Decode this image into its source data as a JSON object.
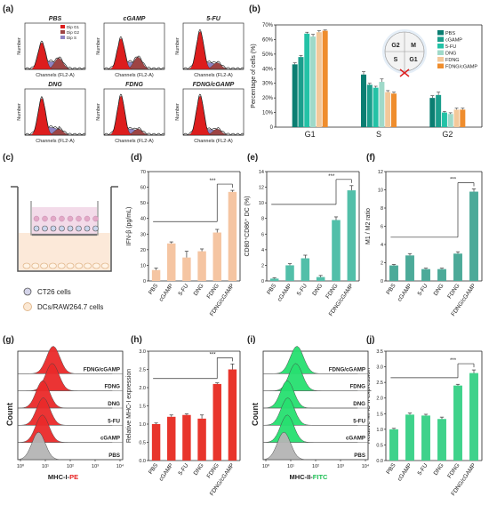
{
  "panel_labels": [
    "(a)",
    "(b)",
    "(c)",
    "(d)",
    "(e)",
    "(f)",
    "(g)",
    "(h)",
    "(i)",
    "(j)"
  ],
  "colors": {
    "cell_g1": "#dd1d1d",
    "cell_g2": "#9e4444",
    "cell_s": "#8f84c4",
    "b_series": [
      "#0b7e72",
      "#1b9e8c",
      "#23c2a6",
      "#9fd9c9",
      "#f3c89a",
      "#ef8d2d"
    ],
    "d_bar": "#f5c5a2",
    "e_bar": "#52bfa9",
    "f_bar": "#4caa99",
    "h_bar": "#e8352c",
    "j_bar": "#3fd28b",
    "g_peak": "#ea2a2a",
    "i_peak": "#27e070",
    "pbs_peak": "#b5b5b5",
    "g_axis_label_accent": "#e62020",
    "i_axis_label_accent": "#1fbf55"
  },
  "panel_a": {
    "legend": [
      "Dip G1",
      "Dip G2",
      "Dip S"
    ],
    "xlabel": "Channels (FL2-A)",
    "ylabel": "Number",
    "plots": [
      {
        "title": "PBS",
        "g1": 0.45,
        "s": 0.3,
        "g2": 0.22
      },
      {
        "title": "cGAMP",
        "g1": 0.52,
        "s": 0.28,
        "g2": 0.24
      },
      {
        "title": "5-FU",
        "g1": 0.64,
        "s": 0.26,
        "g2": 0.13
      },
      {
        "title": "DNG",
        "g1": 0.62,
        "s": 0.3,
        "g2": 0.12
      },
      {
        "title": "FDNG",
        "g1": 0.66,
        "s": 0.24,
        "g2": 0.12
      },
      {
        "title": "FDNG/cGAMP",
        "g1": 0.66,
        "s": 0.22,
        "g2": 0.12
      }
    ]
  },
  "panel_c": {
    "legend": [
      "CT26 cells",
      "DCs/RAW264.7 cells"
    ]
  },
  "panel_g": {
    "labels": [
      "FDNG/cGAMP",
      "FDNG",
      "DNG",
      "5-FU",
      "cGAMP",
      "PBS"
    ],
    "shift": [
      0.62,
      0.58,
      0.18,
      0.2,
      0.16,
      0.0
    ],
    "xlabel_main": "MHC-I-",
    "xlabel_accent": "PE",
    "ylabel": "Count",
    "ticks": [
      "10⁰",
      "10¹",
      "10²",
      "10³",
      "10⁴"
    ]
  },
  "panel_i": {
    "labels": [
      "FDNG/cGAMP",
      "FDNG",
      "DNG",
      "5-FU",
      "cGAMP",
      "PBS"
    ],
    "shift": [
      0.55,
      0.5,
      0.14,
      0.16,
      0.14,
      0.0
    ],
    "xlabel_main": "MHC-II-",
    "xlabel_accent": "FITC",
    "ylabel": "Count",
    "ticks": [
      "10⁰",
      "10¹",
      "10²",
      "10³",
      "10⁴"
    ]
  },
  "chart_data": [
    {
      "id": "b",
      "type": "bar",
      "ylabel": "Percentage of cells (%)",
      "categories": [
        "G1",
        "S",
        "G2"
      ],
      "ylim": [
        0,
        70
      ],
      "yticks": [
        "0",
        "10%",
        "20%",
        "30%",
        "40%",
        "50%",
        "60%",
        "70%"
      ],
      "series": [
        {
          "name": "PBS",
          "values": [
            43,
            36,
            20
          ],
          "err": [
            1,
            2,
            1.5
          ]
        },
        {
          "name": "cGAMP",
          "values": [
            48,
            29,
            22
          ],
          "err": [
            1,
            1,
            2
          ]
        },
        {
          "name": "5-FU",
          "values": [
            64,
            27,
            10
          ],
          "err": [
            1,
            1,
            0.8
          ]
        },
        {
          "name": "DNG",
          "values": [
            62,
            31,
            9
          ],
          "err": [
            1.5,
            2,
            0.8
          ]
        },
        {
          "name": "FDNG",
          "values": [
            65,
            24,
            12
          ],
          "err": [
            1,
            1,
            1
          ]
        },
        {
          "name": "FDNG/cGAMP",
          "values": [
            66,
            23,
            12
          ],
          "err": [
            0.5,
            1,
            1
          ]
        }
      ],
      "inset": [
        "G2",
        "M",
        "S",
        "G1"
      ]
    },
    {
      "id": "d",
      "type": "bar",
      "ylabel": "IFN-β (pg/mL)",
      "categories": [
        "PBS",
        "cGAMP",
        "5-FU",
        "DNG",
        "FDNG",
        "FDNG/cGAMP"
      ],
      "values": [
        7,
        24,
        15,
        19,
        31,
        57
      ],
      "err": [
        1.2,
        1,
        4,
        1.5,
        2,
        1
      ],
      "ylim": [
        0,
        70
      ],
      "yticks": [
        "0",
        "10",
        "20",
        "30",
        "40",
        "50",
        "60",
        "70"
      ],
      "sig": "***"
    },
    {
      "id": "e",
      "type": "bar",
      "ylabel": "CD80⁺CD86⁺ DC (%)",
      "categories": [
        "PBS",
        "cGAMP",
        "5-FU",
        "DNG",
        "FDNG",
        "FDNG/cGAMP"
      ],
      "values": [
        0.3,
        2.0,
        2.9,
        0.5,
        7.8,
        11.6
      ],
      "err": [
        0.1,
        0.2,
        0.4,
        0.2,
        0.4,
        0.6
      ],
      "ylim": [
        0,
        14
      ],
      "yticks": [
        "0",
        "2",
        "4",
        "6",
        "8",
        "10",
        "12",
        "14"
      ],
      "sig": "***"
    },
    {
      "id": "f",
      "type": "bar",
      "ylabel": "M1 / M2 ratio",
      "categories": [
        "PBS",
        "cGAMP",
        "5-FU",
        "DNG",
        "FDNG",
        "FDNG/cGAMP"
      ],
      "values": [
        1.7,
        2.8,
        1.3,
        1.3,
        3.0,
        9.8
      ],
      "err": [
        0.1,
        0.2,
        0.1,
        0.1,
        0.2,
        0.3
      ],
      "ylim": [
        0,
        12
      ],
      "yticks": [
        "0",
        "2",
        "4",
        "6",
        "8",
        "10",
        "12"
      ],
      "sig": "***"
    },
    {
      "id": "h",
      "type": "bar",
      "ylabel": "Relative MHC-I expression",
      "categories": [
        "PBS",
        "cGAMP",
        "5-FU",
        "DNG",
        "FDNG",
        "FDNG/cGAMP"
      ],
      "values": [
        1.0,
        1.2,
        1.25,
        1.15,
        2.1,
        2.5
      ],
      "err": [
        0.03,
        0.05,
        0.03,
        0.1,
        0.03,
        0.15
      ],
      "ylim": [
        0,
        3.0
      ],
      "yticks": [
        "0.0",
        "0.5",
        "1.0",
        "1.5",
        "2.0",
        "2.5",
        "3.0"
      ],
      "sig": "***"
    },
    {
      "id": "j",
      "type": "bar",
      "ylabel": "Relative MHC-II expression",
      "categories": [
        "PBS",
        "cGAMP",
        "5-FU",
        "DNG",
        "FDNG",
        "FDNG/cGAMP"
      ],
      "values": [
        1.0,
        1.47,
        1.44,
        1.33,
        2.4,
        2.8
      ],
      "err": [
        0.03,
        0.05,
        0.04,
        0.06,
        0.04,
        0.1
      ],
      "ylim": [
        0,
        3.5
      ],
      "yticks": [
        "0.0",
        "0.5",
        "1.0",
        "1.5",
        "2.0",
        "2.5",
        "3.0",
        "3.5"
      ],
      "sig": "***"
    }
  ]
}
